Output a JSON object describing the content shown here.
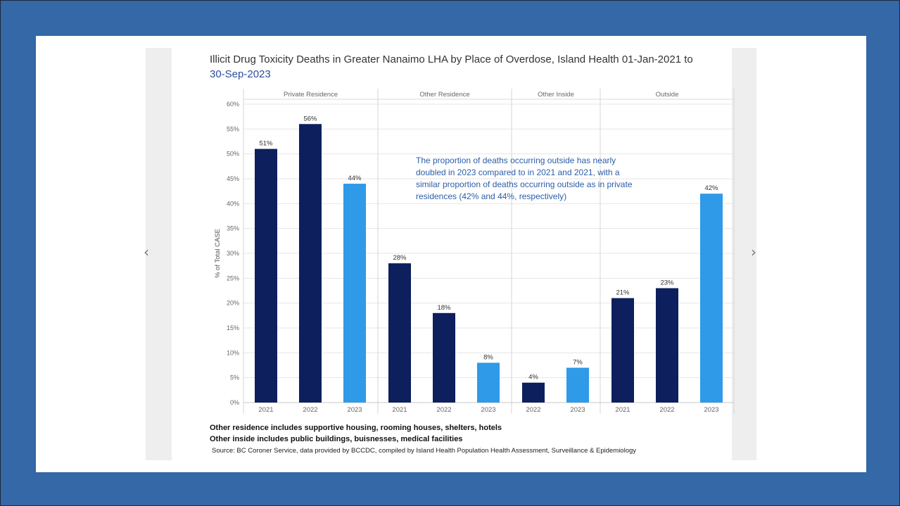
{
  "chart_data": {
    "type": "bar",
    "title_line1": "Illicit Drug Toxicity Deaths in Greater Nanaimo LHA by Place of Overdose, Island Health 01-Jan-2021 to",
    "title_line2": "30-Sep-2023",
    "ylabel": "% of Total CASE",
    "ylim": [
      0,
      60
    ],
    "yticks": [
      "0%",
      "5%",
      "10%",
      "15%",
      "20%",
      "25%",
      "30%",
      "35%",
      "40%",
      "45%",
      "50%",
      "55%",
      "60%"
    ],
    "grid": true,
    "panels": [
      {
        "name": "Private Residence",
        "bars": [
          {
            "year": "2021",
            "value": 51,
            "label": "51%"
          },
          {
            "year": "2022",
            "value": 56,
            "label": "56%"
          },
          {
            "year": "2023",
            "value": 44,
            "label": "44%"
          }
        ]
      },
      {
        "name": "Other Residence",
        "bars": [
          {
            "year": "2021",
            "value": 28,
            "label": "28%"
          },
          {
            "year": "2022",
            "value": 18,
            "label": "18%"
          },
          {
            "year": "2023",
            "value": 8,
            "label": "8%"
          }
        ]
      },
      {
        "name": "Other Inside",
        "bars": [
          {
            "year": "2022",
            "value": 4,
            "label": "4%"
          },
          {
            "year": "2023",
            "value": 7,
            "label": "7%"
          }
        ]
      },
      {
        "name": "Outside",
        "bars": [
          {
            "year": "2021",
            "value": 21,
            "label": "21%"
          },
          {
            "year": "2022",
            "value": 23,
            "label": "23%"
          },
          {
            "year": "2023",
            "value": 42,
            "label": "42%"
          }
        ]
      }
    ],
    "annotation": [
      "The proportion of deaths occurring outside has nearly",
      "doubled in 2023 compared to in 2021 and 2021, with a",
      "similar proportion of deaths occurring outside as in private",
      "residences (42% and 44%, respectively)"
    ],
    "colors": {
      "2021": "#0d1f5c",
      "2022": "#0d1f5c",
      "2023": "#2e9ae8",
      "annotation": "#2b5ea8",
      "grid": "#e6e6e6"
    }
  },
  "footnotes": {
    "other_residence": "Other residence includes supportive housing, rooming houses, shelters, hotels",
    "other_inside": "Other inside includes public buildings, buisnesses, medical facilities",
    "source": "Source: BC Coroner Service, data provided by BCCDC, compiled by Island Health Population Health Assessment, Surveillance & Epidemiology"
  },
  "nav": {
    "prev_icon": "‹",
    "next_icon": "›"
  }
}
